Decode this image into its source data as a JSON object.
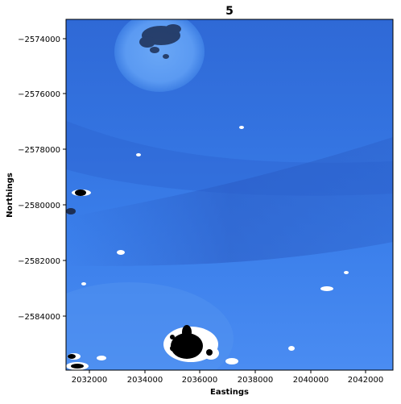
{
  "title": "5",
  "xlabel": "Eastings",
  "ylabel": "Northings",
  "x_ticks": [
    "2032000",
    "2034000",
    "2036000",
    "2038000",
    "2040000",
    "2042000"
  ],
  "y_ticks": [
    "−2574000",
    "−2576000",
    "−2578000",
    "−2580000",
    "−2582000",
    "−2584000"
  ],
  "colors": {
    "water_deep": "#2a5dc9",
    "water_mid": "#3576e6",
    "water_light": "#4a8ef0",
    "cloud_white": "#ffffff",
    "nodata_black": "#000000"
  }
}
